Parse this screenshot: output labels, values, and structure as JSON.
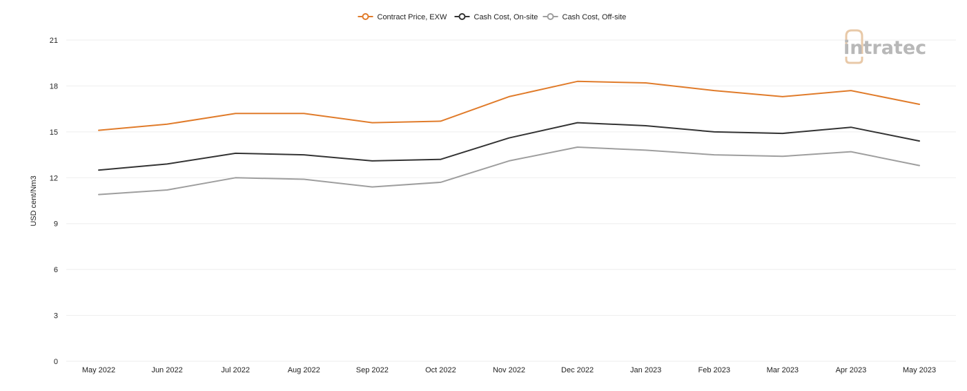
{
  "brand": {
    "name": "intratec",
    "accent_color": "#e8c9a8",
    "text_color": "#b8b8b8"
  },
  "chart_data": {
    "type": "line",
    "title": "",
    "xlabel": "",
    "ylabel": "USD cent/Nm3",
    "ylim": [
      0,
      21
    ],
    "yticks": [
      0,
      3,
      6,
      9,
      12,
      15,
      18,
      21
    ],
    "grid": true,
    "legend_position": "top-center",
    "categories": [
      "May 2022",
      "Jun 2022",
      "Jul 2022",
      "Aug 2022",
      "Sep 2022",
      "Oct 2022",
      "Nov 2022",
      "Dec 2022",
      "Jan 2023",
      "Feb 2023",
      "Mar 2023",
      "Apr 2023",
      "May 2023"
    ],
    "series": [
      {
        "name": "Contract Price, EXW",
        "color": "#e07b2a",
        "values": [
          15.1,
          15.5,
          16.2,
          16.2,
          15.6,
          15.7,
          17.3,
          18.3,
          18.2,
          17.7,
          17.3,
          17.7,
          16.8
        ]
      },
      {
        "name": "Cash Cost, On-site",
        "color": "#333333",
        "values": [
          12.5,
          12.9,
          13.6,
          13.5,
          13.1,
          13.2,
          14.6,
          15.6,
          15.4,
          15.0,
          14.9,
          15.3,
          14.4
        ]
      },
      {
        "name": "Cash Cost, Off-site",
        "color": "#9e9e9e",
        "values": [
          10.9,
          11.2,
          12.0,
          11.9,
          11.4,
          11.7,
          13.1,
          14.0,
          13.8,
          13.5,
          13.4,
          13.7,
          12.8
        ]
      }
    ]
  }
}
